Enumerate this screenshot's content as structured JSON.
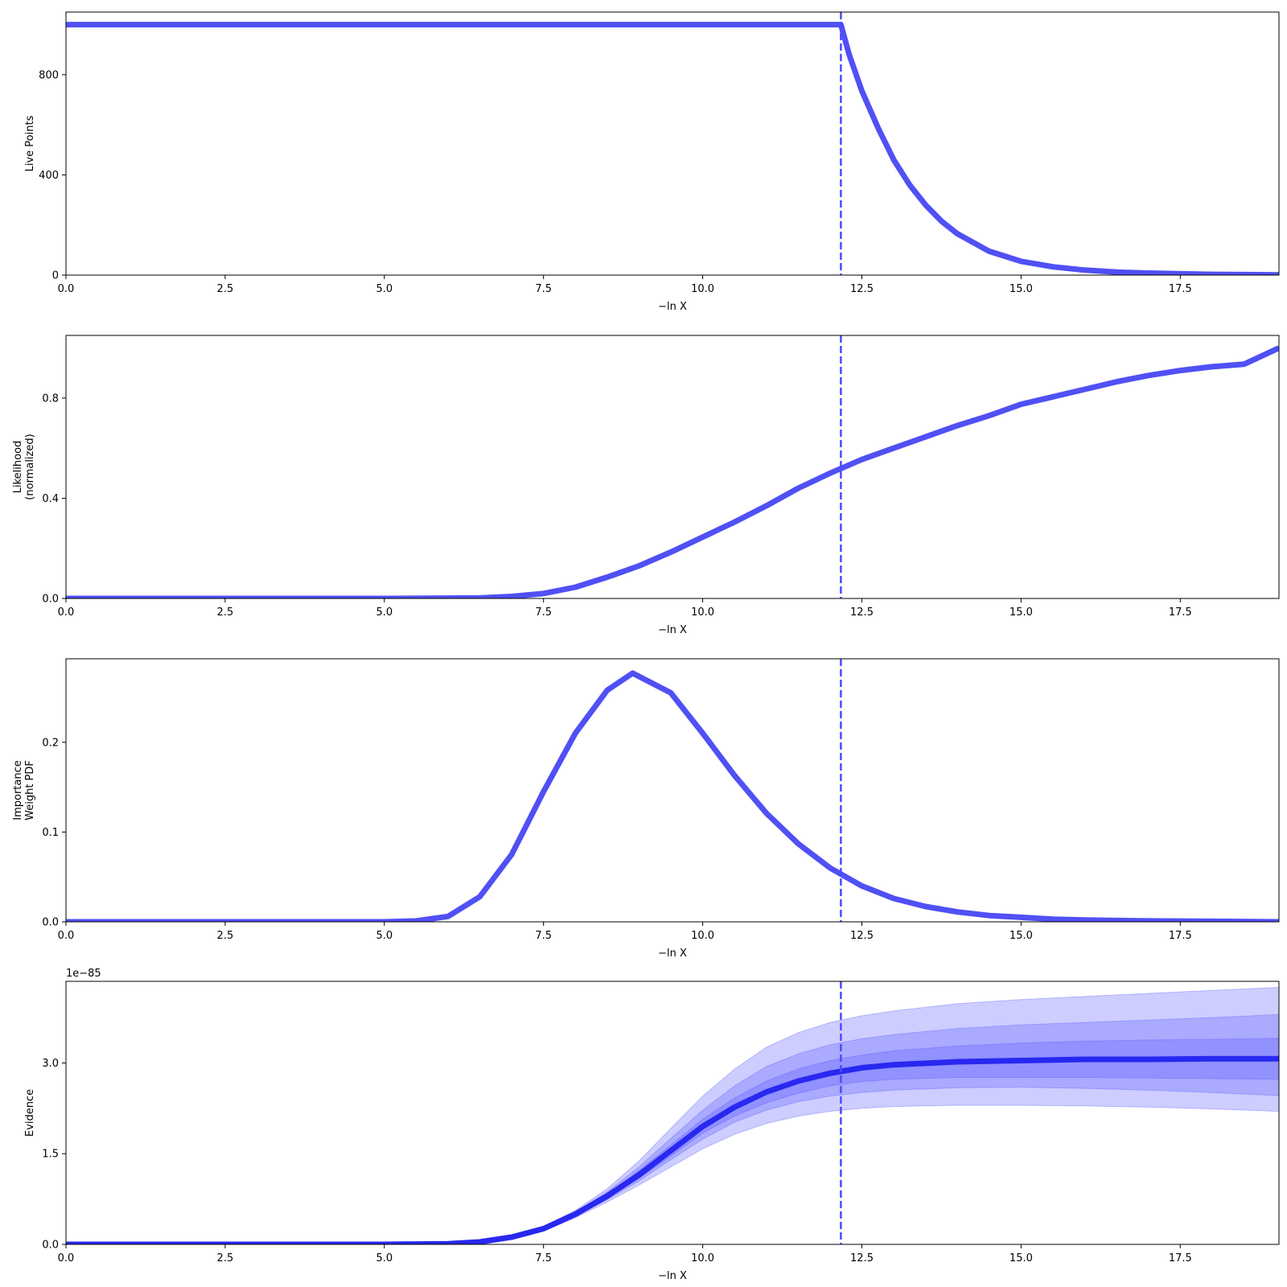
{
  "figure": {
    "accent_color": "#4b4bff",
    "line_color": "#5050f5",
    "evidence_line_color": "#2828f0",
    "band_color": "#5a5aff"
  },
  "chart_data": [
    {
      "type": "line",
      "ylabel": [
        "Live Points"
      ],
      "xlabel": "−ln X",
      "xlim": [
        0,
        19.05
      ],
      "ylim": [
        0,
        1050
      ],
      "xticks": [
        0,
        2.5,
        5,
        7.5,
        10,
        12.5,
        15,
        17.5
      ],
      "xtick_labels": [
        "0.0",
        "2.5",
        "5.0",
        "7.5",
        "10.0",
        "12.5",
        "15.0",
        "17.5"
      ],
      "yticks": [
        0,
        400,
        800
      ],
      "ytick_labels": [
        "0",
        "400",
        "800"
      ],
      "offset_label": "",
      "vline_x": 12.17,
      "series": [
        {
          "x": [
            0,
            12.17,
            12.3,
            12.5,
            12.75,
            13,
            13.25,
            13.5,
            13.75,
            14,
            14.5,
            15,
            15.5,
            16,
            16.5,
            17,
            17.5,
            18,
            18.5,
            19.05
          ],
          "y": [
            1000,
            1000,
            880,
            735,
            590,
            460,
            360,
            280,
            215,
            165,
            95,
            55,
            33,
            20,
            12,
            8,
            5,
            3,
            2,
            1
          ]
        }
      ]
    },
    {
      "type": "line",
      "ylabel": [
        "Likelihood",
        "(normalized)"
      ],
      "xlabel": "−ln X",
      "xlim": [
        0,
        19.05
      ],
      "ylim": [
        0,
        1.05
      ],
      "xticks": [
        0,
        2.5,
        5,
        7.5,
        10,
        12.5,
        15,
        17.5
      ],
      "xtick_labels": [
        "0.0",
        "2.5",
        "5.0",
        "7.5",
        "10.0",
        "12.5",
        "15.0",
        "17.5"
      ],
      "yticks": [
        0,
        0.4,
        0.8
      ],
      "ytick_labels": [
        "0.0",
        "0.4",
        "0.8"
      ],
      "offset_label": "",
      "vline_x": 12.17,
      "series": [
        {
          "x": [
            0,
            5,
            6.5,
            7,
            7.5,
            8,
            8.5,
            9,
            9.5,
            10,
            10.5,
            11,
            11.5,
            12,
            12.5,
            13,
            13.5,
            14,
            14.5,
            15,
            15.5,
            16,
            16.5,
            17,
            17.5,
            18,
            18.5,
            19.05
          ],
          "y": [
            0,
            0,
            0.002,
            0.008,
            0.02,
            0.045,
            0.085,
            0.13,
            0.185,
            0.245,
            0.305,
            0.37,
            0.44,
            0.5,
            0.555,
            0.6,
            0.645,
            0.69,
            0.73,
            0.775,
            0.805,
            0.835,
            0.865,
            0.89,
            0.91,
            0.925,
            0.935,
            1.0
          ]
        }
      ]
    },
    {
      "type": "line",
      "ylabel": [
        "Importance",
        "Weight PDF"
      ],
      "xlabel": "−ln X",
      "xlim": [
        0,
        19.05
      ],
      "ylim": [
        0,
        0.293
      ],
      "xticks": [
        0,
        2.5,
        5,
        7.5,
        10,
        12.5,
        15,
        17.5
      ],
      "xtick_labels": [
        "0.0",
        "2.5",
        "5.0",
        "7.5",
        "10.0",
        "12.5",
        "15.0",
        "17.5"
      ],
      "yticks": [
        0,
        0.1,
        0.2
      ],
      "ytick_labels": [
        "0.0",
        "0.1",
        "0.2"
      ],
      "offset_label": "",
      "vline_x": 12.17,
      "series": [
        {
          "x": [
            0,
            5,
            5.5,
            6,
            6.5,
            7,
            7.5,
            8,
            8.5,
            8.9,
            9.5,
            10,
            10.5,
            11,
            11.5,
            12,
            12.5,
            13,
            13.5,
            14,
            14.5,
            15,
            15.5,
            16,
            17,
            18,
            19.05
          ],
          "y": [
            0,
            0,
            0.001,
            0.006,
            0.028,
            0.075,
            0.145,
            0.21,
            0.258,
            0.277,
            0.255,
            0.21,
            0.163,
            0.121,
            0.087,
            0.06,
            0.04,
            0.026,
            0.017,
            0.011,
            0.007,
            0.005,
            0.003,
            0.002,
            0.001,
            0.0005,
            0
          ]
        }
      ]
    },
    {
      "type": "area",
      "ylabel": [
        "Evidence"
      ],
      "xlabel": "−ln X",
      "xlim": [
        0,
        19.05
      ],
      "ylim": [
        0,
        4.35
      ],
      "xticks": [
        0,
        2.5,
        5,
        7.5,
        10,
        12.5,
        15,
        17.5
      ],
      "xtick_labels": [
        "0.0",
        "2.5",
        "5.0",
        "7.5",
        "10.0",
        "12.5",
        "15.0",
        "17.5"
      ],
      "yticks": [
        0,
        1.5,
        3.0
      ],
      "ytick_labels": [
        "0.0",
        "1.5",
        "3.0"
      ],
      "offset_label": "1e−85",
      "vline_x": 12.17,
      "x": [
        0,
        5,
        6,
        6.5,
        7,
        7.5,
        8,
        8.5,
        9,
        9.5,
        10,
        10.5,
        11,
        11.5,
        12,
        12.5,
        13,
        14,
        15,
        16,
        17,
        18,
        19.05
      ],
      "median": [
        0,
        0,
        0.01,
        0.04,
        0.12,
        0.26,
        0.5,
        0.8,
        1.15,
        1.55,
        1.95,
        2.27,
        2.52,
        2.7,
        2.83,
        2.92,
        2.97,
        3.02,
        3.04,
        3.06,
        3.06,
        3.07,
        3.07
      ],
      "bands": [
        {
          "upper": [
            0,
            0,
            0.01,
            0.05,
            0.14,
            0.3,
            0.56,
            0.92,
            1.38,
            1.92,
            2.45,
            2.9,
            3.26,
            3.5,
            3.67,
            3.78,
            3.86,
            3.98,
            4.05,
            4.1,
            4.15,
            4.2,
            4.25
          ],
          "lower": [
            0,
            0,
            0.01,
            0.03,
            0.1,
            0.22,
            0.44,
            0.7,
            0.98,
            1.28,
            1.58,
            1.82,
            2.0,
            2.12,
            2.2,
            2.25,
            2.28,
            2.3,
            2.3,
            2.29,
            2.27,
            2.24,
            2.2
          ]
        },
        {
          "upper": [
            0,
            0,
            0.01,
            0.05,
            0.13,
            0.28,
            0.53,
            0.87,
            1.28,
            1.75,
            2.22,
            2.62,
            2.94,
            3.15,
            3.3,
            3.4,
            3.47,
            3.57,
            3.63,
            3.67,
            3.71,
            3.75,
            3.8
          ],
          "lower": [
            0,
            0,
            0.01,
            0.03,
            0.11,
            0.24,
            0.47,
            0.74,
            1.05,
            1.4,
            1.74,
            2.02,
            2.22,
            2.36,
            2.45,
            2.51,
            2.55,
            2.59,
            2.6,
            2.58,
            2.55,
            2.51,
            2.46
          ]
        },
        {
          "upper": [
            0,
            0,
            0.01,
            0.04,
            0.13,
            0.27,
            0.51,
            0.83,
            1.22,
            1.64,
            2.07,
            2.42,
            2.7,
            2.9,
            3.04,
            3.13,
            3.2,
            3.28,
            3.33,
            3.36,
            3.38,
            3.39,
            3.41
          ],
          "lower": [
            0,
            0,
            0.01,
            0.04,
            0.11,
            0.25,
            0.48,
            0.77,
            1.09,
            1.46,
            1.84,
            2.12,
            2.34,
            2.5,
            2.62,
            2.69,
            2.73,
            2.76,
            2.76,
            2.76,
            2.75,
            2.74,
            2.73
          ]
        }
      ]
    }
  ]
}
